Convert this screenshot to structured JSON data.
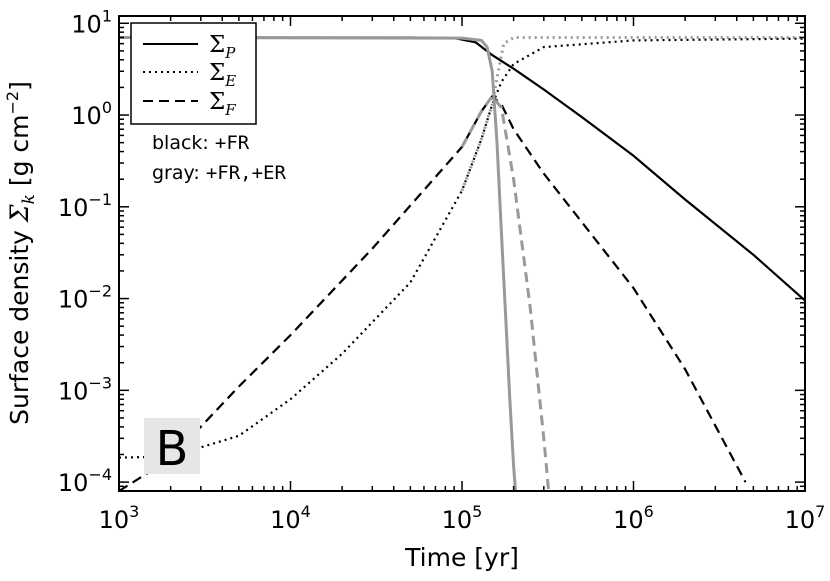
{
  "chart_data": {
    "type": "line",
    "xlabel": "Time [yr]",
    "ylabel_prefix": "Surface density ",
    "ylabel_symbol": "Σ",
    "ylabel_sub": "k",
    "ylabel_unit": " [g cm",
    "ylabel_unit_exp": "−2",
    "ylabel_unit_close": "]",
    "x_scale": "log",
    "y_scale": "log",
    "xlim": [
      1000,
      10000000
    ],
    "ylim": [
      8e-05,
      12
    ],
    "grid": false,
    "legend_position": "top-left",
    "x_ticks": [
      {
        "value": 1000,
        "base": "10",
        "exp": "3"
      },
      {
        "value": 10000,
        "base": "10",
        "exp": "4"
      },
      {
        "value": 100000,
        "base": "10",
        "exp": "5"
      },
      {
        "value": 1000000,
        "base": "10",
        "exp": "6"
      },
      {
        "value": 10000000,
        "base": "10",
        "exp": "7"
      }
    ],
    "y_ticks": [
      {
        "value": 0.0001,
        "base": "10",
        "exp": "−4"
      },
      {
        "value": 0.001,
        "base": "10",
        "exp": "−3"
      },
      {
        "value": 0.01,
        "base": "10",
        "exp": "−2"
      },
      {
        "value": 0.1,
        "base": "10",
        "exp": "−1"
      },
      {
        "value": 1,
        "base": "10",
        "exp": "0"
      },
      {
        "value": 10,
        "base": "10",
        "exp": "1"
      }
    ],
    "legend": [
      {
        "label_main": "Σ",
        "label_sub": "P",
        "style": "solid"
      },
      {
        "label_main": "Σ",
        "label_sub": "E",
        "style": "dotted"
      },
      {
        "label_main": "Σ",
        "label_sub": "F",
        "style": "dashed"
      }
    ],
    "annotations": {
      "black_label": "black: ",
      "black_code": "+FR",
      "gray_label": "gray: ",
      "gray_code": "+FR,+ER",
      "panel_letter": "B"
    },
    "colors": {
      "black": "#000000",
      "gray": "#999999",
      "panel_bg": "#e6e6e6"
    },
    "series": [
      {
        "color": "black",
        "style": "solid",
        "x": [
          1000,
          10000,
          50000,
          90000,
          120000,
          150000,
          200000,
          300000,
          500000,
          1000000,
          2000000,
          5000000,
          10000000
        ],
        "y": [
          7,
          7,
          7,
          6.9,
          6.2,
          4.5,
          3.2,
          1.9,
          0.95,
          0.36,
          0.12,
          0.03,
          0.0095
        ]
      },
      {
        "color": "black",
        "style": "dotted",
        "x": [
          1000,
          2000,
          5000,
          10000,
          20000,
          50000,
          100000,
          130000,
          150000,
          170000,
          200000,
          300000,
          1000000,
          10000000
        ],
        "y": [
          0.000185,
          0.00019,
          0.00032,
          0.0008,
          0.0025,
          0.015,
          0.15,
          0.55,
          1.3,
          2.3,
          3.6,
          5.5,
          6.5,
          6.8
        ]
      },
      {
        "color": "black",
        "style": "dashed",
        "x": [
          1000,
          2000,
          5000,
          10000,
          30000,
          100000,
          130000,
          150000,
          170000,
          200000,
          300000,
          1000000,
          2000000,
          4500000
        ],
        "y": [
          8e-05,
          0.00018,
          0.0011,
          0.004,
          0.035,
          0.45,
          1.1,
          1.6,
          1.3,
          0.7,
          0.23,
          0.013,
          0.0017,
          0.0001
        ]
      },
      {
        "color": "gray",
        "style": "solid",
        "x": [
          1000,
          100000,
          130000,
          140000,
          150000,
          160000,
          170000,
          180000,
          190000,
          200000,
          205000
        ],
        "y": [
          7,
          6.9,
          6.5,
          5.5,
          3.0,
          0.5,
          0.05,
          0.006,
          0.0008,
          0.00015,
          8e-05
        ]
      },
      {
        "color": "gray",
        "style": "dotted",
        "x": [
          100000,
          130000,
          150000,
          160000,
          175000,
          200000,
          300000,
          1000000,
          10000000
        ],
        "y": [
          0.15,
          0.55,
          1.3,
          2.5,
          6.0,
          7.0,
          7.0,
          7.0,
          7.0
        ]
      },
      {
        "color": "gray",
        "style": "dashed",
        "x": [
          100000,
          130000,
          150000,
          170000,
          200000,
          250000,
          300000,
          320000
        ],
        "y": [
          0.45,
          1.1,
          1.6,
          1.2,
          0.2,
          0.008,
          0.0003,
          8e-05
        ]
      }
    ]
  }
}
